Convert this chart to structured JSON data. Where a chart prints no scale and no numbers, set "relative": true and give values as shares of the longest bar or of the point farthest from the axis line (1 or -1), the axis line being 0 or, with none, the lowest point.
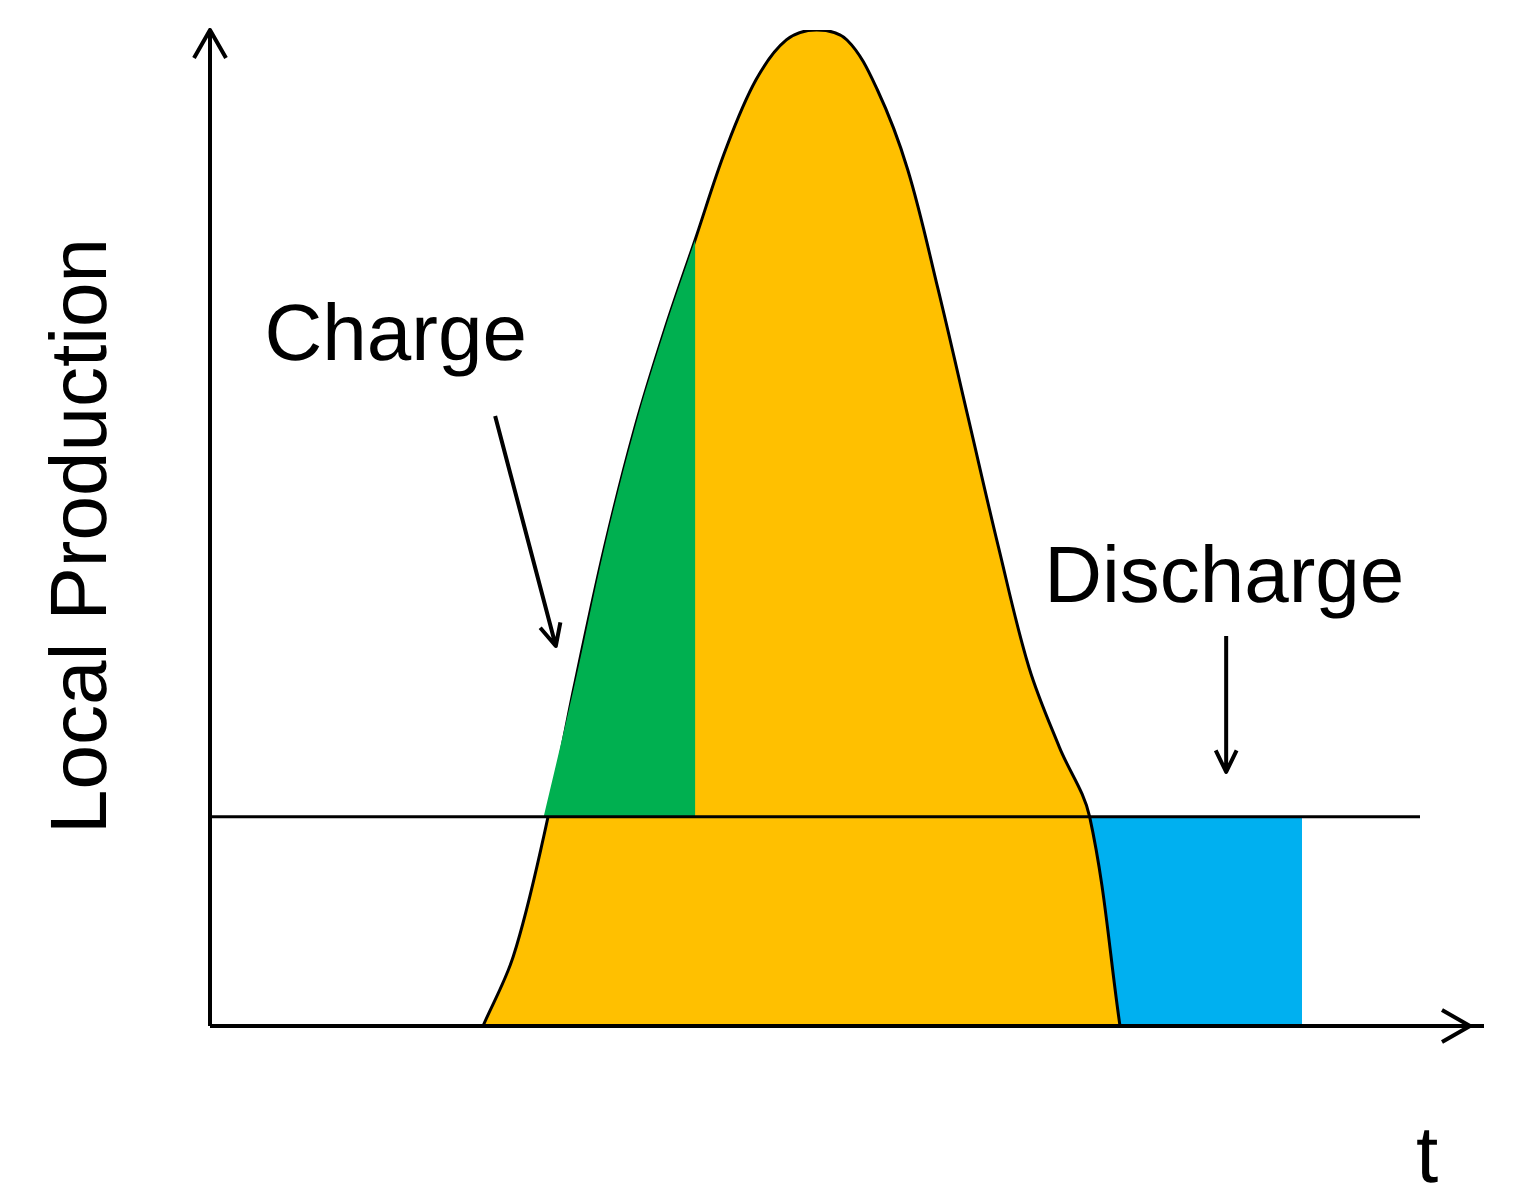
{
  "chart_data": {
    "type": "area",
    "relative": true,
    "xlabel": "t",
    "ylabel": "Local Production",
    "legend": false,
    "categories": [
      null,
      null,
      null,
      null,
      null,
      null,
      null,
      null,
      null,
      null,
      null,
      null,
      null,
      null,
      null,
      null,
      null,
      null,
      null,
      null,
      null,
      null,
      null,
      null,
      null,
      null,
      null,
      null,
      null,
      null,
      null,
      null,
      null,
      null,
      null,
      null,
      null,
      null,
      null,
      null,
      null,
      null,
      null
    ],
    "series": [
      {
        "color": "#ffc000",
        "values": [
          null,
          null,
          null,
          null,
          null,
          null,
          null,
          null,
          null,
          0,
          0.07,
          0.19,
          0.34,
          0.48,
          0.6,
          0.7,
          0.79,
          0.88,
          0.95,
          0.99,
          1,
          0.99,
          0.94,
          0.86,
          0.74,
          0.61,
          0.48,
          0.36,
          0.28,
          0.21,
          0,
          null,
          null,
          null,
          null,
          null,
          null,
          null,
          null,
          null,
          null,
          null,
          null
        ]
      },
      {
        "color": "#00b050",
        "values": [
          null,
          null,
          null,
          null,
          null,
          null,
          null,
          null,
          null,
          null,
          null,
          0.21,
          0.34,
          0.48,
          0.6,
          0.7,
          0.79,
          null,
          null,
          null,
          null,
          null,
          null,
          null,
          null,
          null,
          null,
          null,
          null,
          null,
          null,
          null,
          null,
          null,
          null,
          null,
          null,
          null,
          null,
          null,
          null,
          null,
          null
        ]
      },
      {
        "color": "#00b0f0",
        "values": [
          null,
          null,
          null,
          null,
          null,
          null,
          null,
          null,
          null,
          null,
          null,
          null,
          null,
          null,
          null,
          null,
          null,
          null,
          null,
          null,
          null,
          null,
          null,
          null,
          null,
          null,
          null,
          null,
          null,
          0.21,
          0.21,
          0.21,
          0.21,
          0.21,
          0.21,
          0.21,
          0.21,
          null,
          null,
          null,
          null,
          null,
          null
        ]
      }
    ],
    "ref_lines": [
      {
        "axis": "y",
        "value": 0.21,
        "color": "#000000"
      }
    ],
    "annotations": [
      "Charge",
      "Discharge"
    ]
  }
}
